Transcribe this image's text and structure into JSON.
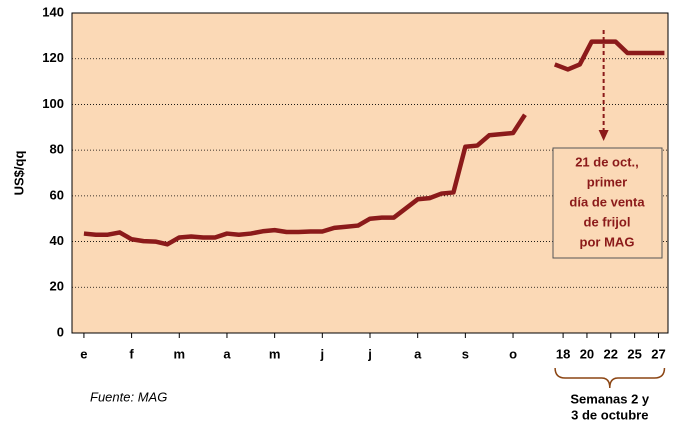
{
  "chart_data": {
    "type": "line",
    "y_label": "US$/qq",
    "source": "Fuente:  MAG",
    "annotation": {
      "lines": [
        "21 de oct.,",
        "primer",
        "día de venta",
        "de frijol",
        "por MAG"
      ],
      "x": 44.6
    },
    "bracket": {
      "lines": [
        "Semanas 2 y",
        "3 de octubre"
      ],
      "from": 41.2,
      "to": 49.2
    },
    "color": "#8b1a1a",
    "x": [
      1,
      2,
      3,
      4,
      5,
      6,
      7,
      8,
      9,
      10,
      11,
      12,
      13,
      14,
      15,
      16,
      17,
      18,
      19,
      20,
      21,
      22,
      23,
      24,
      25,
      26,
      27,
      28,
      29,
      30,
      31,
      32,
      33,
      34,
      35,
      36,
      37,
      38,
      39,
      40.5,
      41.6,
      42.6,
      43.6,
      44.6,
      45.6,
      46.6,
      47.6,
      48.6,
      49.7
    ],
    "values": [
      43.5,
      43,
      43,
      44,
      41,
      40.2,
      40,
      38.8,
      41.8,
      42.2,
      41.8,
      41.8,
      43.5,
      43,
      43.5,
      44.5,
      45,
      44.2,
      44.2,
      44.4,
      44.4,
      46,
      46.5,
      47,
      50,
      50.5,
      50.5,
      54.5,
      58.5,
      59,
      61,
      61.5,
      81.5,
      82,
      86.5,
      87,
      87.5,
      95.5,
      null,
      117.5,
      115.3,
      117.5,
      127.5,
      127.5,
      127.5,
      122.5,
      122.5,
      122.5,
      122.5
    ],
    "xlim": [
      0,
      50
    ],
    "xticks": [
      {
        "value": 1,
        "label": "e"
      },
      {
        "value": 5,
        "label": "f"
      },
      {
        "value": 9,
        "label": "m"
      },
      {
        "value": 13,
        "label": "a"
      },
      {
        "value": 17,
        "label": "m"
      },
      {
        "value": 21,
        "label": "j"
      },
      {
        "value": 25,
        "label": "j"
      },
      {
        "value": 29,
        "label": "a"
      },
      {
        "value": 33,
        "label": "s"
      },
      {
        "value": 37,
        "label": "o"
      },
      {
        "value": 41.2,
        "label": "18"
      },
      {
        "value": 43.2,
        "label": "20"
      },
      {
        "value": 45.2,
        "label": "22"
      },
      {
        "value": 47.2,
        "label": "25"
      },
      {
        "value": 49.2,
        "label": "27"
      }
    ],
    "ylim": [
      0,
      140
    ],
    "yticks": [
      0,
      20,
      40,
      60,
      80,
      100,
      120,
      140
    ],
    "grid": true
  }
}
